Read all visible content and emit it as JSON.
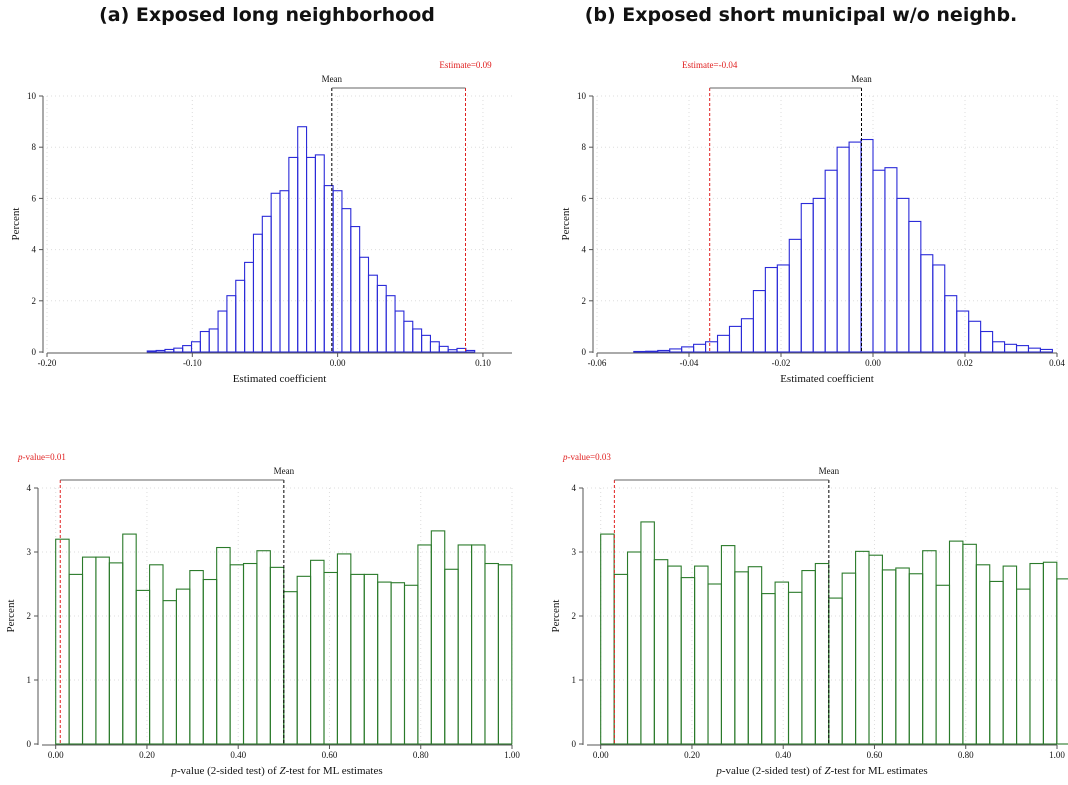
{
  "panels": {
    "a": {
      "title": "(a) Exposed long neighborhood"
    },
    "b": {
      "title": "(b) Exposed short municipal w/o neighb."
    }
  },
  "chart_data": [
    {
      "id": "hist-a",
      "type": "bar",
      "subtype": "histogram",
      "panel": "a",
      "xlabel": "Estimated coefficient",
      "ylabel": "Percent",
      "xlim": [
        -0.2,
        0.12
      ],
      "ylim": [
        0,
        10
      ],
      "xticks": [
        -0.2,
        -0.1,
        0.0,
        0.1
      ],
      "xtick_labels": [
        "-0.20",
        "-0.10",
        "0.00",
        "0.10"
      ],
      "yticks": [
        0,
        2,
        4,
        6,
        8,
        10
      ],
      "grid": true,
      "bar_color": "#2a2ad8",
      "bins": {
        "start": -0.131,
        "width": 0.00609,
        "values": [
          0.04,
          0.06,
          0.1,
          0.15,
          0.25,
          0.4,
          0.8,
          0.9,
          1.6,
          2.2,
          2.8,
          3.5,
          4.6,
          5.3,
          6.2,
          6.3,
          7.6,
          8.8,
          7.6,
          7.7,
          6.5,
          6.3,
          5.6,
          4.9,
          3.7,
          3.0,
          2.6,
          2.2,
          1.6,
          1.2,
          0.9,
          0.65,
          0.4,
          0.22,
          0.09,
          0.14,
          0.06
        ]
      },
      "mean_line": {
        "label": "Mean",
        "x": -0.004
      },
      "estimate_line": {
        "label": "Estimate=0.09",
        "x": 0.088,
        "color": "#e02020"
      }
    },
    {
      "id": "hist-b",
      "type": "bar",
      "subtype": "histogram",
      "panel": "b",
      "xlabel": "Estimated coefficient",
      "ylabel": "Percent",
      "xlim": [
        -0.06,
        0.04
      ],
      "ylim": [
        0,
        10
      ],
      "xticks": [
        -0.06,
        -0.04,
        -0.02,
        0.0,
        0.02,
        0.04
      ],
      "xtick_labels": [
        "-0.06",
        "-0.04",
        "-0.02",
        "0.00",
        "0.02",
        "0.04"
      ],
      "yticks": [
        0,
        2,
        4,
        6,
        8,
        10
      ],
      "grid": true,
      "bar_color": "#2a2ad8",
      "bins": {
        "start": -0.052,
        "width": 0.0026,
        "values": [
          0.02,
          0.03,
          0.06,
          0.12,
          0.2,
          0.3,
          0.4,
          0.65,
          1.0,
          1.3,
          2.4,
          3.3,
          3.4,
          4.4,
          5.8,
          6.0,
          7.1,
          8.0,
          8.2,
          8.3,
          7.1,
          7.2,
          6.0,
          5.1,
          3.8,
          3.4,
          2.2,
          1.6,
          1.2,
          0.8,
          0.4,
          0.3,
          0.25,
          0.15,
          0.1
        ]
      },
      "mean_line": {
        "label": "Mean",
        "x": -0.0025
      },
      "estimate_line": {
        "label": "Estimate=-0.04",
        "x": -0.0355,
        "color": "#e02020"
      }
    },
    {
      "id": "hist-c",
      "type": "bar",
      "subtype": "histogram",
      "panel": "a",
      "xlabel": "p-value (2-sided test) of Z-test for ML estimates",
      "ylabel": "Percent",
      "xlim": [
        -0.03,
        1.0
      ],
      "ylim": [
        0,
        4
      ],
      "xticks": [
        0,
        0.2,
        0.4,
        0.6,
        0.8,
        1.0
      ],
      "xtick_labels": [
        "0.00",
        "0.20",
        "0.40",
        "0.60",
        "0.80",
        "1.00"
      ],
      "yticks": [
        0,
        1,
        2,
        3,
        4
      ],
      "grid": true,
      "bar_color": "#2a7a2a",
      "bins": {
        "start": 0,
        "width": 0.0294,
        "values": [
          3.2,
          2.65,
          2.92,
          2.92,
          2.83,
          3.28,
          2.4,
          2.8,
          2.24,
          2.42,
          2.71,
          2.57,
          3.07,
          2.8,
          2.82,
          3.02,
          2.76,
          2.38,
          2.62,
          2.87,
          2.68,
          2.97,
          2.65,
          2.65,
          2.53,
          2.52,
          2.48,
          3.11,
          3.33,
          2.73,
          3.11,
          3.11,
          2.82,
          2.8
        ]
      },
      "mean_line": {
        "label": "Mean",
        "x": 0.5
      },
      "estimate_line": {
        "label": "p-value=0.01",
        "x": 0.01,
        "color": "#e02020"
      }
    },
    {
      "id": "hist-d",
      "type": "bar",
      "subtype": "histogram",
      "panel": "b",
      "xlabel": "p-value (2-sided test) of Z-test for ML estimates",
      "ylabel": "Percent",
      "xlim": [
        -0.03,
        1.0
      ],
      "ylim": [
        0,
        4
      ],
      "xticks": [
        0,
        0.2,
        0.4,
        0.6,
        0.8,
        1.0
      ],
      "xtick_labels": [
        "0.00",
        "0.20",
        "0.40",
        "0.60",
        "0.80",
        "1.00"
      ],
      "yticks": [
        0,
        1,
        2,
        3,
        4
      ],
      "grid": true,
      "bar_color": "#2a7a2a",
      "bins": {
        "start": 0,
        "width": 0.0294,
        "values": [
          3.28,
          2.65,
          3.0,
          3.47,
          2.88,
          2.78,
          2.6,
          2.78,
          2.5,
          3.1,
          2.69,
          2.77,
          2.35,
          2.53,
          2.37,
          2.71,
          2.82,
          2.28,
          2.67,
          3.01,
          2.95,
          2.72,
          2.75,
          2.66,
          3.02,
          2.48,
          3.17,
          3.12,
          2.8,
          2.54,
          2.78,
          2.42,
          2.82,
          2.84,
          2.58,
          3.05
        ]
      },
      "mean_line": {
        "label": "Mean",
        "x": 0.5
      },
      "estimate_line": {
        "label": "p-value=0.03",
        "x": 0.03,
        "color": "#e02020"
      }
    }
  ]
}
